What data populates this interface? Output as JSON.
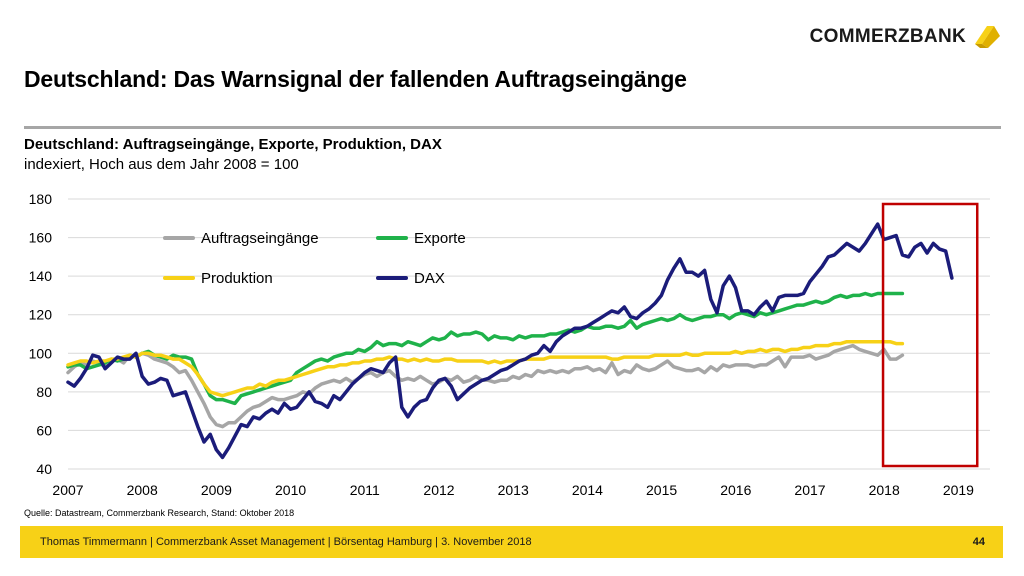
{
  "header": {
    "brand": "COMMERZBANK",
    "brand_color": "#f7d117",
    "logo_icon": "commerzbank-ribbon-icon"
  },
  "page_title": "Deutschland: Das Warnsignal der fallenden Auftragseingänge",
  "chart_data": {
    "type": "line",
    "title": "Deutschland: Auftragseingänge, Exporte, Produktion, DAX",
    "subtitle": "indexiert, Hoch aus dem Jahr 2008 = 100",
    "x_tick_labels": [
      "2007",
      "2008",
      "2009",
      "2010",
      "2011",
      "2012",
      "2013",
      "2014",
      "2015",
      "2016",
      "2017",
      "2018",
      "2019"
    ],
    "y_tick_labels": [
      "40",
      "60",
      "80",
      "100",
      "120",
      "140",
      "160",
      "180"
    ],
    "xlim": [
      2007,
      2019.3
    ],
    "ylim": [
      40,
      180
    ],
    "grid": "horizontal",
    "legend": "top-left",
    "highlight": {
      "from": 2018.2,
      "to": 2019.2,
      "color": "#c00000"
    },
    "series": [
      {
        "name": "Auftragseingänge",
        "color": "#a6a6a6",
        "x_start": 2007.0,
        "x_step": 0.0833,
        "values": [
          90,
          93,
          95,
          94,
          96,
          95,
          93,
          96,
          97,
          95,
          99,
          98,
          100,
          99,
          97,
          96,
          95,
          93,
          90,
          91,
          86,
          80,
          74,
          67,
          63,
          62,
          64,
          64,
          67,
          70,
          72,
          73,
          75,
          77,
          76,
          76,
          77,
          78,
          80,
          79,
          82,
          84,
          85,
          86,
          85,
          87,
          85,
          87,
          89,
          90,
          88,
          90,
          91,
          88,
          86,
          87,
          86,
          88,
          86,
          84,
          85,
          87,
          86,
          88,
          85,
          86,
          88,
          86,
          86,
          85,
          86,
          86,
          88,
          87,
          89,
          88,
          91,
          90,
          91,
          90,
          91,
          90,
          92,
          92,
          93,
          91,
          92,
          90,
          95,
          89,
          91,
          90,
          94,
          92,
          91,
          92,
          94,
          96,
          93,
          92,
          91,
          91,
          92,
          90,
          93,
          91,
          94,
          93,
          94,
          94,
          94,
          93,
          94,
          94,
          96,
          98,
          93,
          98,
          98,
          98,
          99,
          97,
          98,
          99,
          101,
          102,
          103,
          104,
          102,
          101,
          100,
          99,
          102,
          97,
          97,
          99
        ]
      },
      {
        "name": "Exporte",
        "color": "#1fb24a",
        "x_start": 2007.0,
        "x_step": 0.0833,
        "values": [
          93,
          94,
          94,
          92,
          93,
          94,
          95,
          97,
          96,
          97,
          99,
          98,
          100,
          101,
          99,
          98,
          97,
          99,
          98,
          98,
          97,
          89,
          84,
          78,
          76,
          76,
          75,
          74,
          78,
          79,
          80,
          81,
          82,
          83,
          84,
          85,
          86,
          90,
          92,
          94,
          96,
          97,
          96,
          98,
          99,
          100,
          100,
          102,
          101,
          103,
          106,
          104,
          105,
          105,
          104,
          106,
          105,
          104,
          106,
          108,
          107,
          108,
          111,
          109,
          110,
          110,
          111,
          110,
          107,
          109,
          108,
          108,
          107,
          109,
          108,
          109,
          109,
          109,
          110,
          110,
          111,
          112,
          111,
          112,
          114,
          113,
          113,
          114,
          114,
          113,
          114,
          117,
          113,
          115,
          116,
          117,
          118,
          117,
          118,
          120,
          118,
          117,
          118,
          119,
          119,
          120,
          120,
          118,
          120,
          121,
          120,
          119,
          121,
          120,
          121,
          122,
          123,
          124,
          125,
          125,
          126,
          127,
          126,
          127,
          129,
          130,
          129,
          130,
          130,
          131,
          130,
          131,
          131,
          131,
          131,
          131
        ]
      },
      {
        "name": "Produktion",
        "color": "#f7d117",
        "x_start": 2007.0,
        "x_step": 0.0833,
        "values": [
          94,
          95,
          96,
          96,
          95,
          96,
          96,
          97,
          97,
          98,
          99,
          98,
          100,
          100,
          99,
          99,
          98,
          97,
          97,
          95,
          93,
          89,
          84,
          80,
          79,
          78,
          79,
          80,
          81,
          82,
          82,
          84,
          83,
          85,
          86,
          86,
          87,
          88,
          89,
          90,
          91,
          92,
          93,
          93,
          94,
          94,
          95,
          95,
          96,
          96,
          97,
          97,
          98,
          97,
          97,
          96,
          97,
          96,
          97,
          96,
          96,
          97,
          97,
          96,
          96,
          96,
          96,
          96,
          95,
          96,
          95,
          96,
          96,
          96,
          97,
          97,
          97,
          97,
          98,
          98,
          98,
          98,
          98,
          98,
          98,
          98,
          98,
          98,
          97,
          97,
          98,
          98,
          98,
          98,
          98,
          99,
          99,
          99,
          99,
          99,
          100,
          99,
          99,
          100,
          100,
          100,
          100,
          100,
          101,
          100,
          101,
          101,
          102,
          101,
          102,
          102,
          101,
          102,
          102,
          103,
          103,
          104,
          104,
          104,
          105,
          105,
          106,
          106,
          106,
          106,
          106,
          106,
          106,
          106,
          105,
          105
        ]
      },
      {
        "name": "DAX",
        "color": "#1b1c7a",
        "x_start": 2007.0,
        "x_step": 0.0833,
        "values": [
          85,
          83,
          87,
          92,
          99,
          98,
          92,
          95,
          98,
          97,
          97,
          100,
          88,
          84,
          85,
          87,
          86,
          78,
          79,
          80,
          71,
          62,
          54,
          58,
          50,
          46,
          51,
          57,
          63,
          62,
          67,
          66,
          69,
          71,
          69,
          74,
          71,
          72,
          76,
          80,
          75,
          74,
          72,
          78,
          76,
          80,
          84,
          87,
          90,
          92,
          91,
          90,
          95,
          98,
          72,
          67,
          72,
          75,
          76,
          82,
          86,
          87,
          83,
          76,
          79,
          82,
          84,
          86,
          87,
          89,
          91,
          92,
          94,
          96,
          97,
          99,
          100,
          104,
          101,
          106,
          109,
          111,
          113,
          113,
          114,
          116,
          118,
          120,
          122,
          121,
          124,
          119,
          118,
          121,
          123,
          126,
          130,
          138,
          144,
          149,
          142,
          142,
          140,
          143,
          128,
          121,
          135,
          140,
          134,
          122,
          122,
          120,
          124,
          127,
          122,
          129,
          130,
          130,
          130,
          131,
          137,
          141,
          145,
          150,
          151,
          154,
          157,
          155,
          153,
          157,
          162,
          167,
          159,
          160,
          161,
          151
        ]
      }
    ],
    "dax_tail": [
      150,
      155,
      157,
      152,
      157,
      154,
      153,
      139
    ]
  },
  "source": "Quelle: Datastream, Commerzbank Research, Stand: Oktober 2018",
  "footer": {
    "text": "Thomas Timmermann | Commerzbank Asset Management | Börsentag Hamburg | 3. November 2018",
    "page_number": "44"
  }
}
